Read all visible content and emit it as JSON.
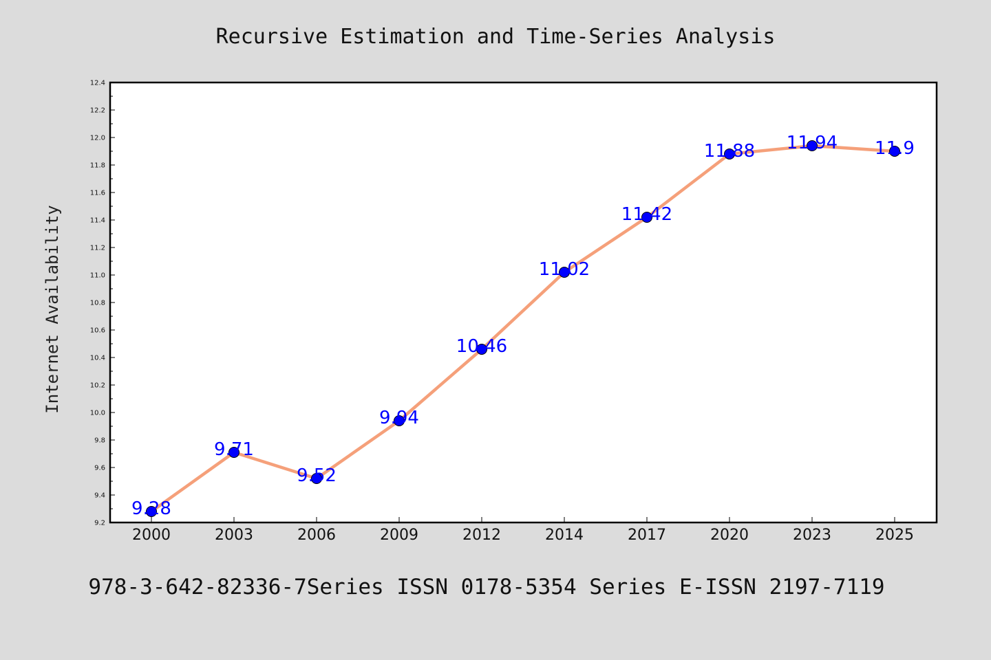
{
  "chart_data": {
    "type": "line",
    "title": "Recursive Estimation and Time-Series Analysis",
    "xlabel": "",
    "ylabel": "Internet Availability",
    "footer": "978-3-642-82336-7Series ISSN 0178-5354 Series E-ISSN 2197-7119",
    "categories": [
      "2000",
      "2003",
      "2006",
      "2009",
      "2012",
      "2014",
      "2017",
      "2020",
      "2023",
      "2025"
    ],
    "series": [
      {
        "values": [
          9.28,
          9.71,
          9.52,
          9.94,
          10.46,
          11.02,
          11.42,
          11.88,
          11.94,
          11.9
        ],
        "labels": [
          "9.28",
          "9.71",
          "9.52",
          "9.94",
          "10.46",
          "11.02",
          "11.42",
          "11.88",
          "11.94",
          "11.9"
        ]
      }
    ],
    "ylim": [
      9.2,
      12.4
    ],
    "yticks": [
      "9.2",
      "9.4",
      "9.6",
      "9.8",
      "10.0",
      "10.2",
      "10.4",
      "10.6",
      "10.8",
      "11.0",
      "11.2",
      "11.4",
      "11.6",
      "11.8",
      "12.0",
      "12.2",
      "12.4"
    ],
    "grid": false,
    "legend": "none",
    "colors": {
      "background": "#dcdcdc",
      "plot_background": "#ffffff",
      "line": "#f5a07a",
      "marker": "#0000ff",
      "data_label": "#0000ff",
      "axis": "#000000"
    }
  }
}
